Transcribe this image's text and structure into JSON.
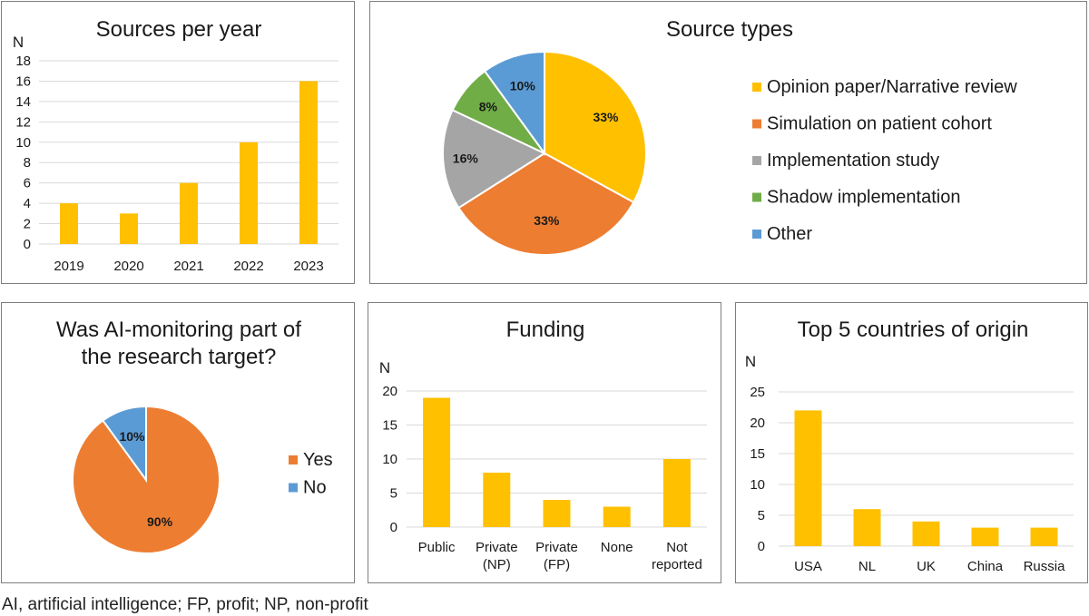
{
  "colors": {
    "yellow": "#ffc000",
    "orange": "#ed7d31",
    "gray": "#a5a5a5",
    "green": "#70ad47",
    "blue": "#5b9bd5",
    "axis": "#d9d9d9"
  },
  "footnote": "AI, artificial intelligence; FP, profit; NP, non-profit",
  "chart_data": [
    {
      "id": "sources-per-year",
      "type": "bar",
      "title": "Sources per year",
      "ylabel": "N",
      "categories": [
        "2019",
        "2020",
        "2021",
        "2022",
        "2023"
      ],
      "values": [
        4,
        3,
        6,
        10,
        16
      ],
      "ylim": [
        0,
        18
      ],
      "yticks": [
        "0",
        "2",
        "4",
        "6",
        "8",
        "10",
        "12",
        "14",
        "16",
        "18"
      ],
      "grid": true,
      "color": "#ffc000"
    },
    {
      "id": "source-types",
      "type": "pie",
      "title": "Source types",
      "labels": [
        "Opinion paper/Narrative review",
        "Simulation on patient cohort",
        "Implementation study",
        "Shadow implementation",
        "Other"
      ],
      "values": [
        33,
        33,
        16,
        8,
        10
      ],
      "value_labels": [
        "33%",
        "33%",
        "16%",
        "8%",
        "10%"
      ],
      "colors": [
        "#ffc000",
        "#ed7d31",
        "#a5a5a5",
        "#70ad47",
        "#5b9bd5"
      ],
      "legend": "right"
    },
    {
      "id": "ai-monitoring",
      "type": "pie",
      "title": [
        "Was AI-monitoring part of",
        "the research target?"
      ],
      "labels": [
        "Yes",
        "No"
      ],
      "values": [
        90,
        10
      ],
      "value_labels": [
        "90%",
        "10%"
      ],
      "colors": [
        "#ed7d31",
        "#5b9bd5"
      ],
      "legend": "right"
    },
    {
      "id": "funding",
      "type": "bar",
      "title": "Funding",
      "ylabel": "N",
      "categories": [
        [
          "Public"
        ],
        [
          "Private",
          "(NP)"
        ],
        [
          "Private",
          "(FP)"
        ],
        [
          "None"
        ],
        [
          "Not",
          "reported"
        ]
      ],
      "values": [
        19,
        8,
        4,
        3,
        10
      ],
      "ylim": [
        0,
        20
      ],
      "yticks": [
        "0",
        "5",
        "10",
        "15",
        "20"
      ],
      "grid": true,
      "color": "#ffc000"
    },
    {
      "id": "countries",
      "type": "bar",
      "title": "Top 5 countries of origin",
      "ylabel": "N",
      "categories": [
        [
          "USA"
        ],
        [
          "NL"
        ],
        [
          "UK"
        ],
        [
          "China"
        ],
        [
          "Russia"
        ]
      ],
      "values": [
        22,
        6,
        4,
        3,
        3
      ],
      "ylim": [
        0,
        25
      ],
      "yticks": [
        "0",
        "5",
        "10",
        "15",
        "20",
        "25"
      ],
      "grid": true,
      "color": "#ffc000"
    }
  ]
}
